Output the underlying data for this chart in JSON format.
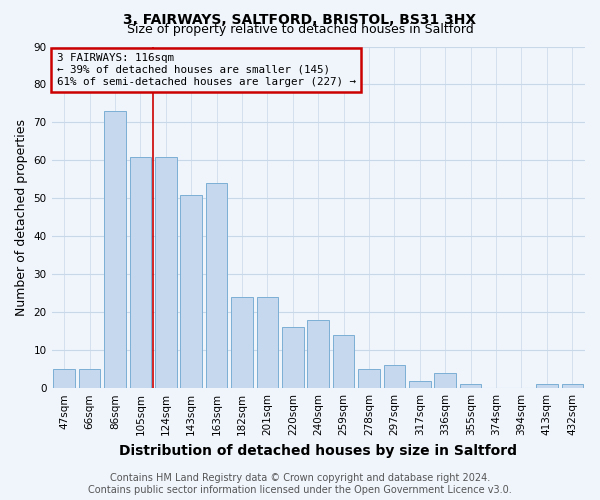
{
  "title1": "3, FAIRWAYS, SALTFORD, BRISTOL, BS31 3HX",
  "title2": "Size of property relative to detached houses in Saltford",
  "xlabel": "Distribution of detached houses by size in Saltford",
  "ylabel": "Number of detached properties",
  "categories": [
    "47sqm",
    "66sqm",
    "86sqm",
    "105sqm",
    "124sqm",
    "143sqm",
    "163sqm",
    "182sqm",
    "201sqm",
    "220sqm",
    "240sqm",
    "259sqm",
    "278sqm",
    "297sqm",
    "317sqm",
    "336sqm",
    "355sqm",
    "374sqm",
    "394sqm",
    "413sqm",
    "432sqm"
  ],
  "values": [
    5,
    5,
    73,
    61,
    61,
    51,
    54,
    24,
    24,
    16,
    18,
    14,
    5,
    6,
    2,
    4,
    1,
    0,
    0,
    1,
    1
  ],
  "bar_color": "#c5d8ed",
  "bar_edge_color": "#7bafd4",
  "annotation_line1": "3 FAIRWAYS: 116sqm",
  "annotation_line2": "← 39% of detached houses are smaller (145)",
  "annotation_line3": "61% of semi-detached houses are larger (227) →",
  "annotation_box_color": "#cc0000",
  "property_line_color": "#cc0000",
  "property_line_x": 3.5,
  "ylim": [
    0,
    90
  ],
  "yticks": [
    0,
    10,
    20,
    30,
    40,
    50,
    60,
    70,
    80,
    90
  ],
  "footer1": "Contains HM Land Registry data © Crown copyright and database right 2024.",
  "footer2": "Contains public sector information licensed under the Open Government Licence v3.0.",
  "bg_color": "#f0f5fc",
  "grid_color": "#c8d8e8",
  "title_fontsize": 10,
  "subtitle_fontsize": 9,
  "axis_label_fontsize": 9,
  "tick_fontsize": 7.5,
  "footer_fontsize": 7
}
